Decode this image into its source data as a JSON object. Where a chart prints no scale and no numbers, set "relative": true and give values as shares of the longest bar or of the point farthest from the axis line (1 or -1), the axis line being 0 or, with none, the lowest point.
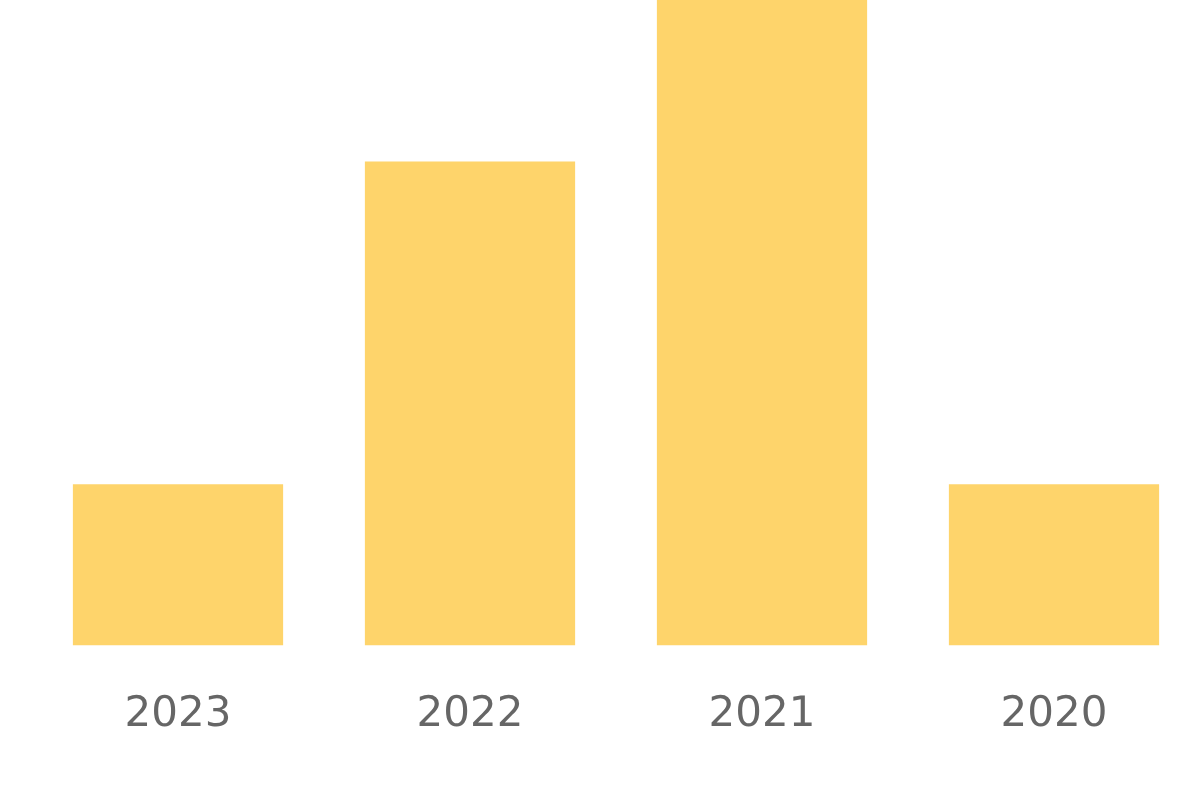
{
  "chart_data": {
    "type": "bar",
    "relative": true,
    "categories": [
      "2023",
      "2022",
      "2021",
      "2020"
    ],
    "values": [
      0.25,
      0.75,
      1,
      0.25
    ],
    "color": "#fed46b",
    "grid": false,
    "legend": false
  }
}
